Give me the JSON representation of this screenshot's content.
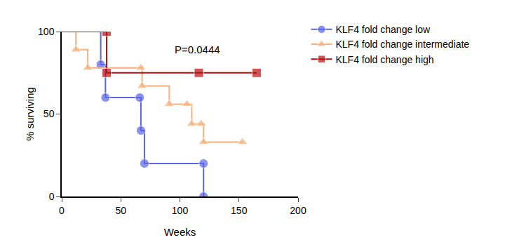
{
  "chart_data": {
    "type": "line",
    "line_style": "step",
    "x_label": "Weeks",
    "y_label": "% surviving",
    "xlim": [
      0,
      200
    ],
    "xticks": [
      0,
      50,
      100,
      150,
      200
    ],
    "ylim": [
      0,
      100
    ],
    "yticks": [
      0,
      50,
      100
    ],
    "grid": false,
    "legend": "right",
    "annotations": [
      {
        "text": "P=0.0444",
        "x": 115,
        "y": 89
      }
    ],
    "series": [
      {
        "name": "KLF4 fold change low",
        "color": "#5a64e6",
        "marker": "circle",
        "x": [
          0,
          33,
          37,
          66,
          67,
          70,
          120,
          120
        ],
        "values": [
          100,
          80,
          60,
          60,
          40,
          20,
          20,
          0
        ]
      },
      {
        "name": "KLF4 fold change intermediate",
        "color": "#f5b07c",
        "marker": "triangle-up",
        "x": [
          0,
          12,
          22,
          67,
          68,
          91,
          106,
          110,
          118,
          120,
          153
        ],
        "values": [
          100,
          89,
          78,
          78,
          67,
          56,
          56,
          44,
          44,
          33,
          33
        ]
      },
      {
        "name": "KLF4 fold change high",
        "color": "#b80f0f",
        "marker": "square",
        "x": [
          0,
          38,
          38,
          116,
          165
        ],
        "values": [
          100,
          100,
          75,
          75,
          75
        ]
      }
    ]
  }
}
